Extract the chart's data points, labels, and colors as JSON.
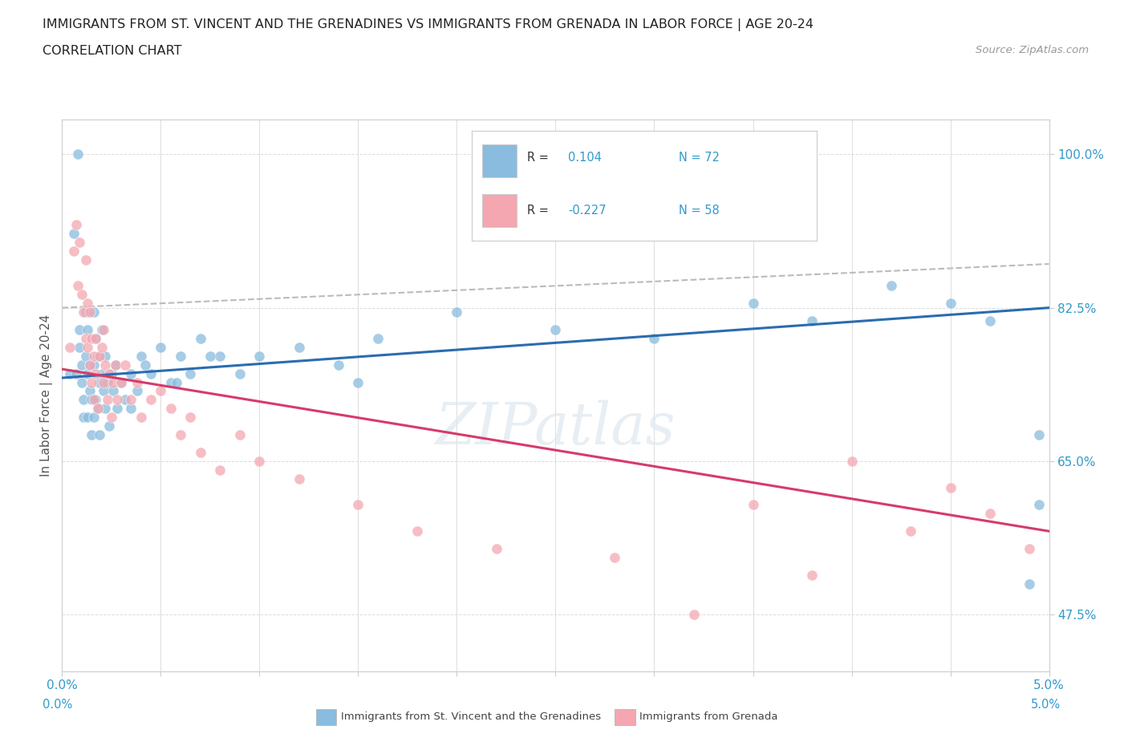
{
  "title_line1": "IMMIGRANTS FROM ST. VINCENT AND THE GRENADINES VS IMMIGRANTS FROM GRENADA IN LABOR FORCE | AGE 20-24",
  "title_line2": "CORRELATION CHART",
  "source_text": "Source: ZipAtlas.com",
  "ylabel_label": "In Labor Force | Age 20-24",
  "watermark": "ZIPatlas",
  "color_blue": "#89bcde",
  "color_pink": "#f4a7b0",
  "color_trend_blue": "#2b6cb0",
  "color_trend_pink": "#d63b6a",
  "color_gray_dash": "#bbbbbb",
  "label_blue": "Immigrants from St. Vincent and the Grenadines",
  "label_pink": "Immigrants from Grenada",
  "xmin": 0.0,
  "xmax": 5.0,
  "ymin": 41.0,
  "ymax": 104.0,
  "ytick_vals": [
    47.5,
    65.0,
    82.5,
    100.0
  ],
  "ytick_labels": [
    "47.5%",
    "65.0%",
    "82.5%",
    "100.0%"
  ],
  "xtick_vals": [
    0.0,
    0.5,
    1.0,
    1.5,
    2.0,
    2.5,
    3.0,
    3.5,
    4.0,
    4.5,
    5.0
  ],
  "blue_trend_x0": 0.0,
  "blue_trend_y0": 74.5,
  "blue_trend_x1": 5.0,
  "blue_trend_y1": 82.5,
  "pink_trend_x0": 0.0,
  "pink_trend_y0": 75.5,
  "pink_trend_x1": 5.0,
  "pink_trend_y1": 57.0,
  "gray_dash_x0": 0.0,
  "gray_dash_y0": 82.5,
  "gray_dash_x1": 5.0,
  "gray_dash_y1": 87.5,
  "blue_x": [
    0.04,
    0.06,
    0.07,
    0.08,
    0.09,
    0.09,
    0.1,
    0.1,
    0.11,
    0.11,
    0.12,
    0.12,
    0.13,
    0.13,
    0.13,
    0.14,
    0.14,
    0.15,
    0.15,
    0.16,
    0.16,
    0.16,
    0.17,
    0.17,
    0.18,
    0.18,
    0.19,
    0.19,
    0.2,
    0.2,
    0.21,
    0.22,
    0.22,
    0.23,
    0.24,
    0.25,
    0.26,
    0.27,
    0.28,
    0.3,
    0.32,
    0.35,
    0.38,
    0.4,
    0.45,
    0.5,
    0.55,
    0.6,
    0.65,
    0.7,
    0.8,
    0.9,
    1.0,
    1.2,
    1.4,
    1.6,
    2.0,
    2.5,
    3.0,
    3.5,
    3.8,
    4.2,
    4.5,
    4.7,
    4.9,
    4.95,
    4.95,
    0.35,
    0.42,
    0.58,
    0.75,
    1.5
  ],
  "blue_y": [
    75.0,
    91.0,
    75.0,
    100.0,
    80.0,
    78.0,
    76.0,
    74.0,
    72.0,
    70.0,
    82.0,
    77.0,
    80.0,
    75.0,
    70.0,
    76.0,
    73.0,
    72.0,
    68.0,
    82.0,
    76.0,
    70.0,
    79.0,
    72.0,
    77.0,
    71.0,
    74.0,
    68.0,
    80.0,
    75.0,
    73.0,
    77.0,
    71.0,
    74.0,
    69.0,
    75.0,
    73.0,
    76.0,
    71.0,
    74.0,
    72.0,
    75.0,
    73.0,
    77.0,
    75.0,
    78.0,
    74.0,
    77.0,
    75.0,
    79.0,
    77.0,
    75.0,
    77.0,
    78.0,
    76.0,
    79.0,
    82.0,
    80.0,
    79.0,
    83.0,
    81.0,
    85.0,
    83.0,
    81.0,
    51.0,
    60.0,
    68.0,
    71.0,
    76.0,
    74.0,
    77.0,
    74.0
  ],
  "pink_x": [
    0.04,
    0.06,
    0.07,
    0.08,
    0.09,
    0.1,
    0.11,
    0.12,
    0.12,
    0.13,
    0.13,
    0.14,
    0.14,
    0.15,
    0.15,
    0.16,
    0.16,
    0.17,
    0.17,
    0.18,
    0.19,
    0.2,
    0.21,
    0.21,
    0.22,
    0.23,
    0.24,
    0.25,
    0.26,
    0.27,
    0.28,
    0.3,
    0.32,
    0.35,
    0.38,
    0.4,
    0.45,
    0.5,
    0.55,
    0.6,
    0.65,
    0.7,
    0.8,
    0.9,
    1.0,
    1.2,
    1.5,
    1.8,
    2.2,
    2.8,
    3.2,
    3.5,
    3.8,
    4.0,
    4.3,
    4.5,
    4.7,
    4.9
  ],
  "pink_y": [
    78.0,
    89.0,
    92.0,
    85.0,
    90.0,
    84.0,
    82.0,
    79.0,
    88.0,
    78.0,
    83.0,
    76.0,
    82.0,
    79.0,
    74.0,
    77.0,
    72.0,
    79.0,
    75.0,
    71.0,
    77.0,
    78.0,
    74.0,
    80.0,
    76.0,
    72.0,
    75.0,
    70.0,
    74.0,
    76.0,
    72.0,
    74.0,
    76.0,
    72.0,
    74.0,
    70.0,
    72.0,
    73.0,
    71.0,
    68.0,
    70.0,
    66.0,
    64.0,
    68.0,
    65.0,
    63.0,
    60.0,
    57.0,
    55.0,
    54.0,
    47.5,
    60.0,
    52.0,
    65.0,
    57.0,
    62.0,
    59.0,
    55.0
  ]
}
